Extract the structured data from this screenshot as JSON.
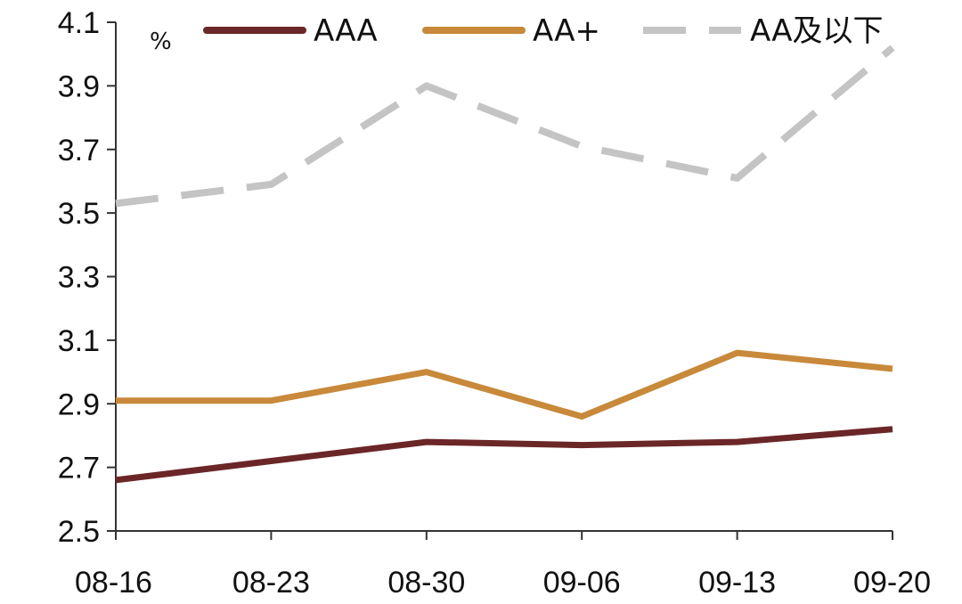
{
  "chart_data": {
    "type": "line",
    "title": "",
    "xlabel": "",
    "ylabel": "%",
    "categories": [
      "08-16",
      "08-23",
      "08-30",
      "09-06",
      "09-13",
      "09-20"
    ],
    "ylim": [
      2.5,
      4.1
    ],
    "yticks": [
      "4.1",
      "3.9",
      "3.7",
      "3.5",
      "3.3",
      "3.1",
      "2.9",
      "2.7",
      "2.5"
    ],
    "grid": false,
    "legend_position": "top",
    "series": [
      {
        "name": "AAA",
        "values": [
          2.66,
          2.72,
          2.78,
          2.77,
          2.78,
          2.82
        ],
        "color": "#6b2628",
        "dash": "solid"
      },
      {
        "name": "AA+",
        "values": [
          2.91,
          2.91,
          3.0,
          2.86,
          3.06,
          3.01
        ],
        "color": "#c8893a",
        "dash": "solid"
      },
      {
        "name": "AA及以下",
        "values": [
          3.53,
          3.59,
          3.9,
          3.71,
          3.61,
          4.02
        ],
        "color": "#c4c4c4",
        "dash": "dashed"
      }
    ]
  }
}
